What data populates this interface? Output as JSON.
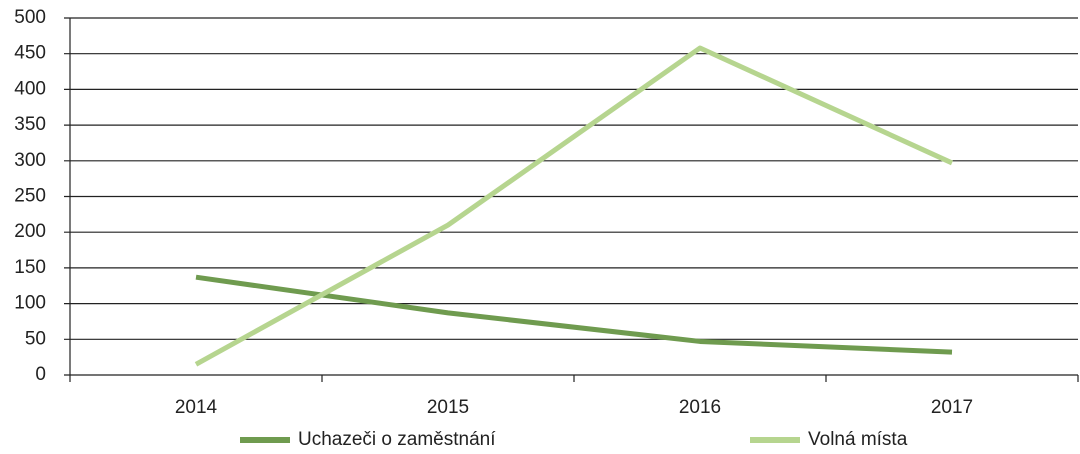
{
  "chart_data": {
    "type": "line",
    "categories": [
      "2014",
      "2015",
      "2016",
      "2017"
    ],
    "series": [
      {
        "name": "Uchazeči o zaměstnání",
        "color": "#6f9b4f",
        "values": [
          137,
          87,
          47,
          32
        ]
      },
      {
        "name": "Volná místa",
        "color": "#b6d58f",
        "values": [
          15,
          210,
          458,
          297
        ]
      }
    ],
    "ylim": [
      0,
      500
    ],
    "yticks": [
      0,
      50,
      100,
      150,
      200,
      250,
      300,
      350,
      400,
      450,
      500
    ],
    "grid": true,
    "legend": "bottom"
  }
}
